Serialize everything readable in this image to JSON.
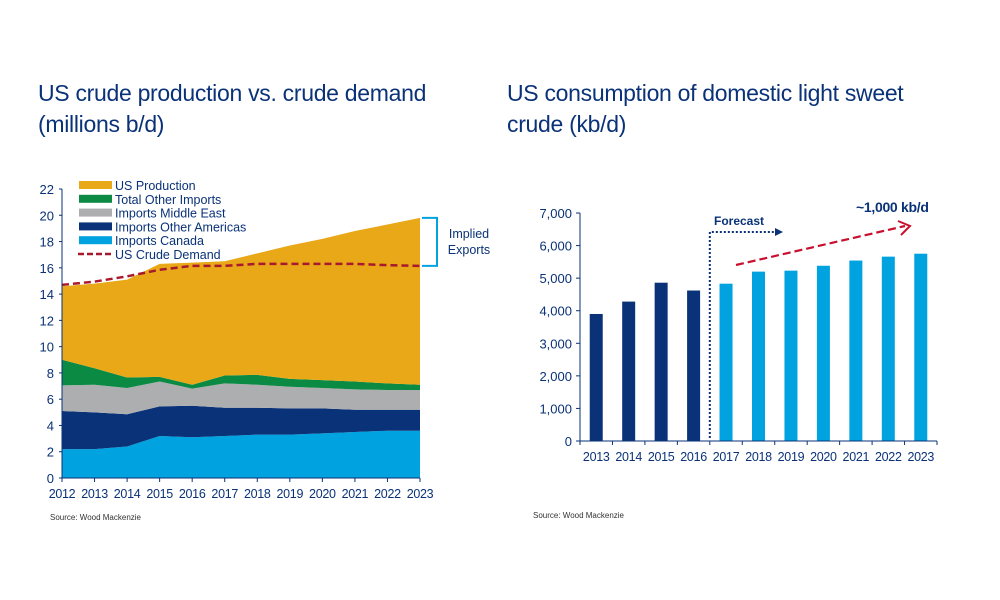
{
  "colors": {
    "title": "#0a3278",
    "axis_text": "#0a3278",
    "production": "#e8a817",
    "other_imports": "#0b8a44",
    "middle_east": "#adaeb0",
    "other_americas": "#0a3278",
    "canada": "#00a3e0",
    "demand": "#a8192e",
    "bracket": "#00a3e0",
    "historic_bar": "#0a3278",
    "forecast_bar": "#00a3e0",
    "trend_arrow": "#c8102e"
  },
  "chart_data": [
    {
      "type": "area",
      "stacked": true,
      "title": "US crude production vs. crude demand (millions b/d)",
      "source": "Source: Wood Mackenzie",
      "x": [
        2012,
        2013,
        2014,
        2015,
        2016,
        2017,
        2018,
        2019,
        2020,
        2021,
        2022,
        2023
      ],
      "ylim": [
        0,
        22
      ],
      "yticks": [
        0,
        2,
        4,
        6,
        8,
        10,
        12,
        14,
        16,
        18,
        20,
        22
      ],
      "grid": false,
      "legend_position": "top-left",
      "series": [
        {
          "name": "Imports Canada",
          "color_key": "canada",
          "values": [
            2.2,
            2.2,
            2.4,
            3.2,
            3.1,
            3.2,
            3.3,
            3.3,
            3.4,
            3.5,
            3.6,
            3.6
          ]
        },
        {
          "name": "Imports Other Americas",
          "color_key": "other_americas",
          "values": [
            2.9,
            2.8,
            2.45,
            2.25,
            2.4,
            2.15,
            2.05,
            2.0,
            1.9,
            1.7,
            1.6,
            1.6
          ]
        },
        {
          "name": "Imports Middle East",
          "color_key": "middle_east",
          "values": [
            1.95,
            2.1,
            2.0,
            1.9,
            1.3,
            1.85,
            1.75,
            1.65,
            1.55,
            1.55,
            1.5,
            1.5
          ]
        },
        {
          "name": "Total Other Imports",
          "color_key": "other_imports",
          "values": [
            1.95,
            1.25,
            0.8,
            0.35,
            0.3,
            0.6,
            0.75,
            0.6,
            0.6,
            0.6,
            0.5,
            0.4
          ]
        },
        {
          "name": "US Production",
          "color_key": "production",
          "values": [
            5.6,
            6.45,
            7.45,
            8.6,
            9.3,
            8.7,
            9.25,
            10.15,
            10.75,
            11.45,
            12.1,
            12.7
          ]
        }
      ],
      "line_series": {
        "name": "US Crude Demand",
        "style": "dashed",
        "color_key": "demand",
        "values": [
          14.7,
          14.95,
          15.35,
          15.85,
          16.15,
          16.15,
          16.3,
          16.3,
          16.3,
          16.3,
          16.2,
          16.15
        ]
      },
      "legend_order": [
        "US Production",
        "Total Other Imports",
        "Imports Middle East",
        "Imports Other Americas",
        "Imports Canada",
        "US Crude Demand"
      ],
      "annotation": {
        "line1": "Implied",
        "line2": "Exports"
      }
    },
    {
      "type": "bar",
      "title": "US consumption of domestic light sweet crude (kb/d)",
      "source": "Source: Wood Mackenzie",
      "categories": [
        "2013",
        "2014",
        "2015",
        "2016",
        "2017",
        "2018",
        "2019",
        "2020",
        "2021",
        "2022",
        "2023"
      ],
      "values": [
        3900,
        4280,
        4860,
        4620,
        4830,
        5200,
        5230,
        5380,
        5540,
        5660,
        5750
      ],
      "forecast_from": "2017",
      "ylim": [
        0,
        7000
      ],
      "yticks": [
        "0",
        "1,000",
        "2,000",
        "3,000",
        "4,000",
        "5,000",
        "6,000",
        "7,000"
      ],
      "grid": false,
      "annotations": {
        "forecast": "Forecast",
        "trend": "~1,000 kb/d"
      }
    }
  ]
}
